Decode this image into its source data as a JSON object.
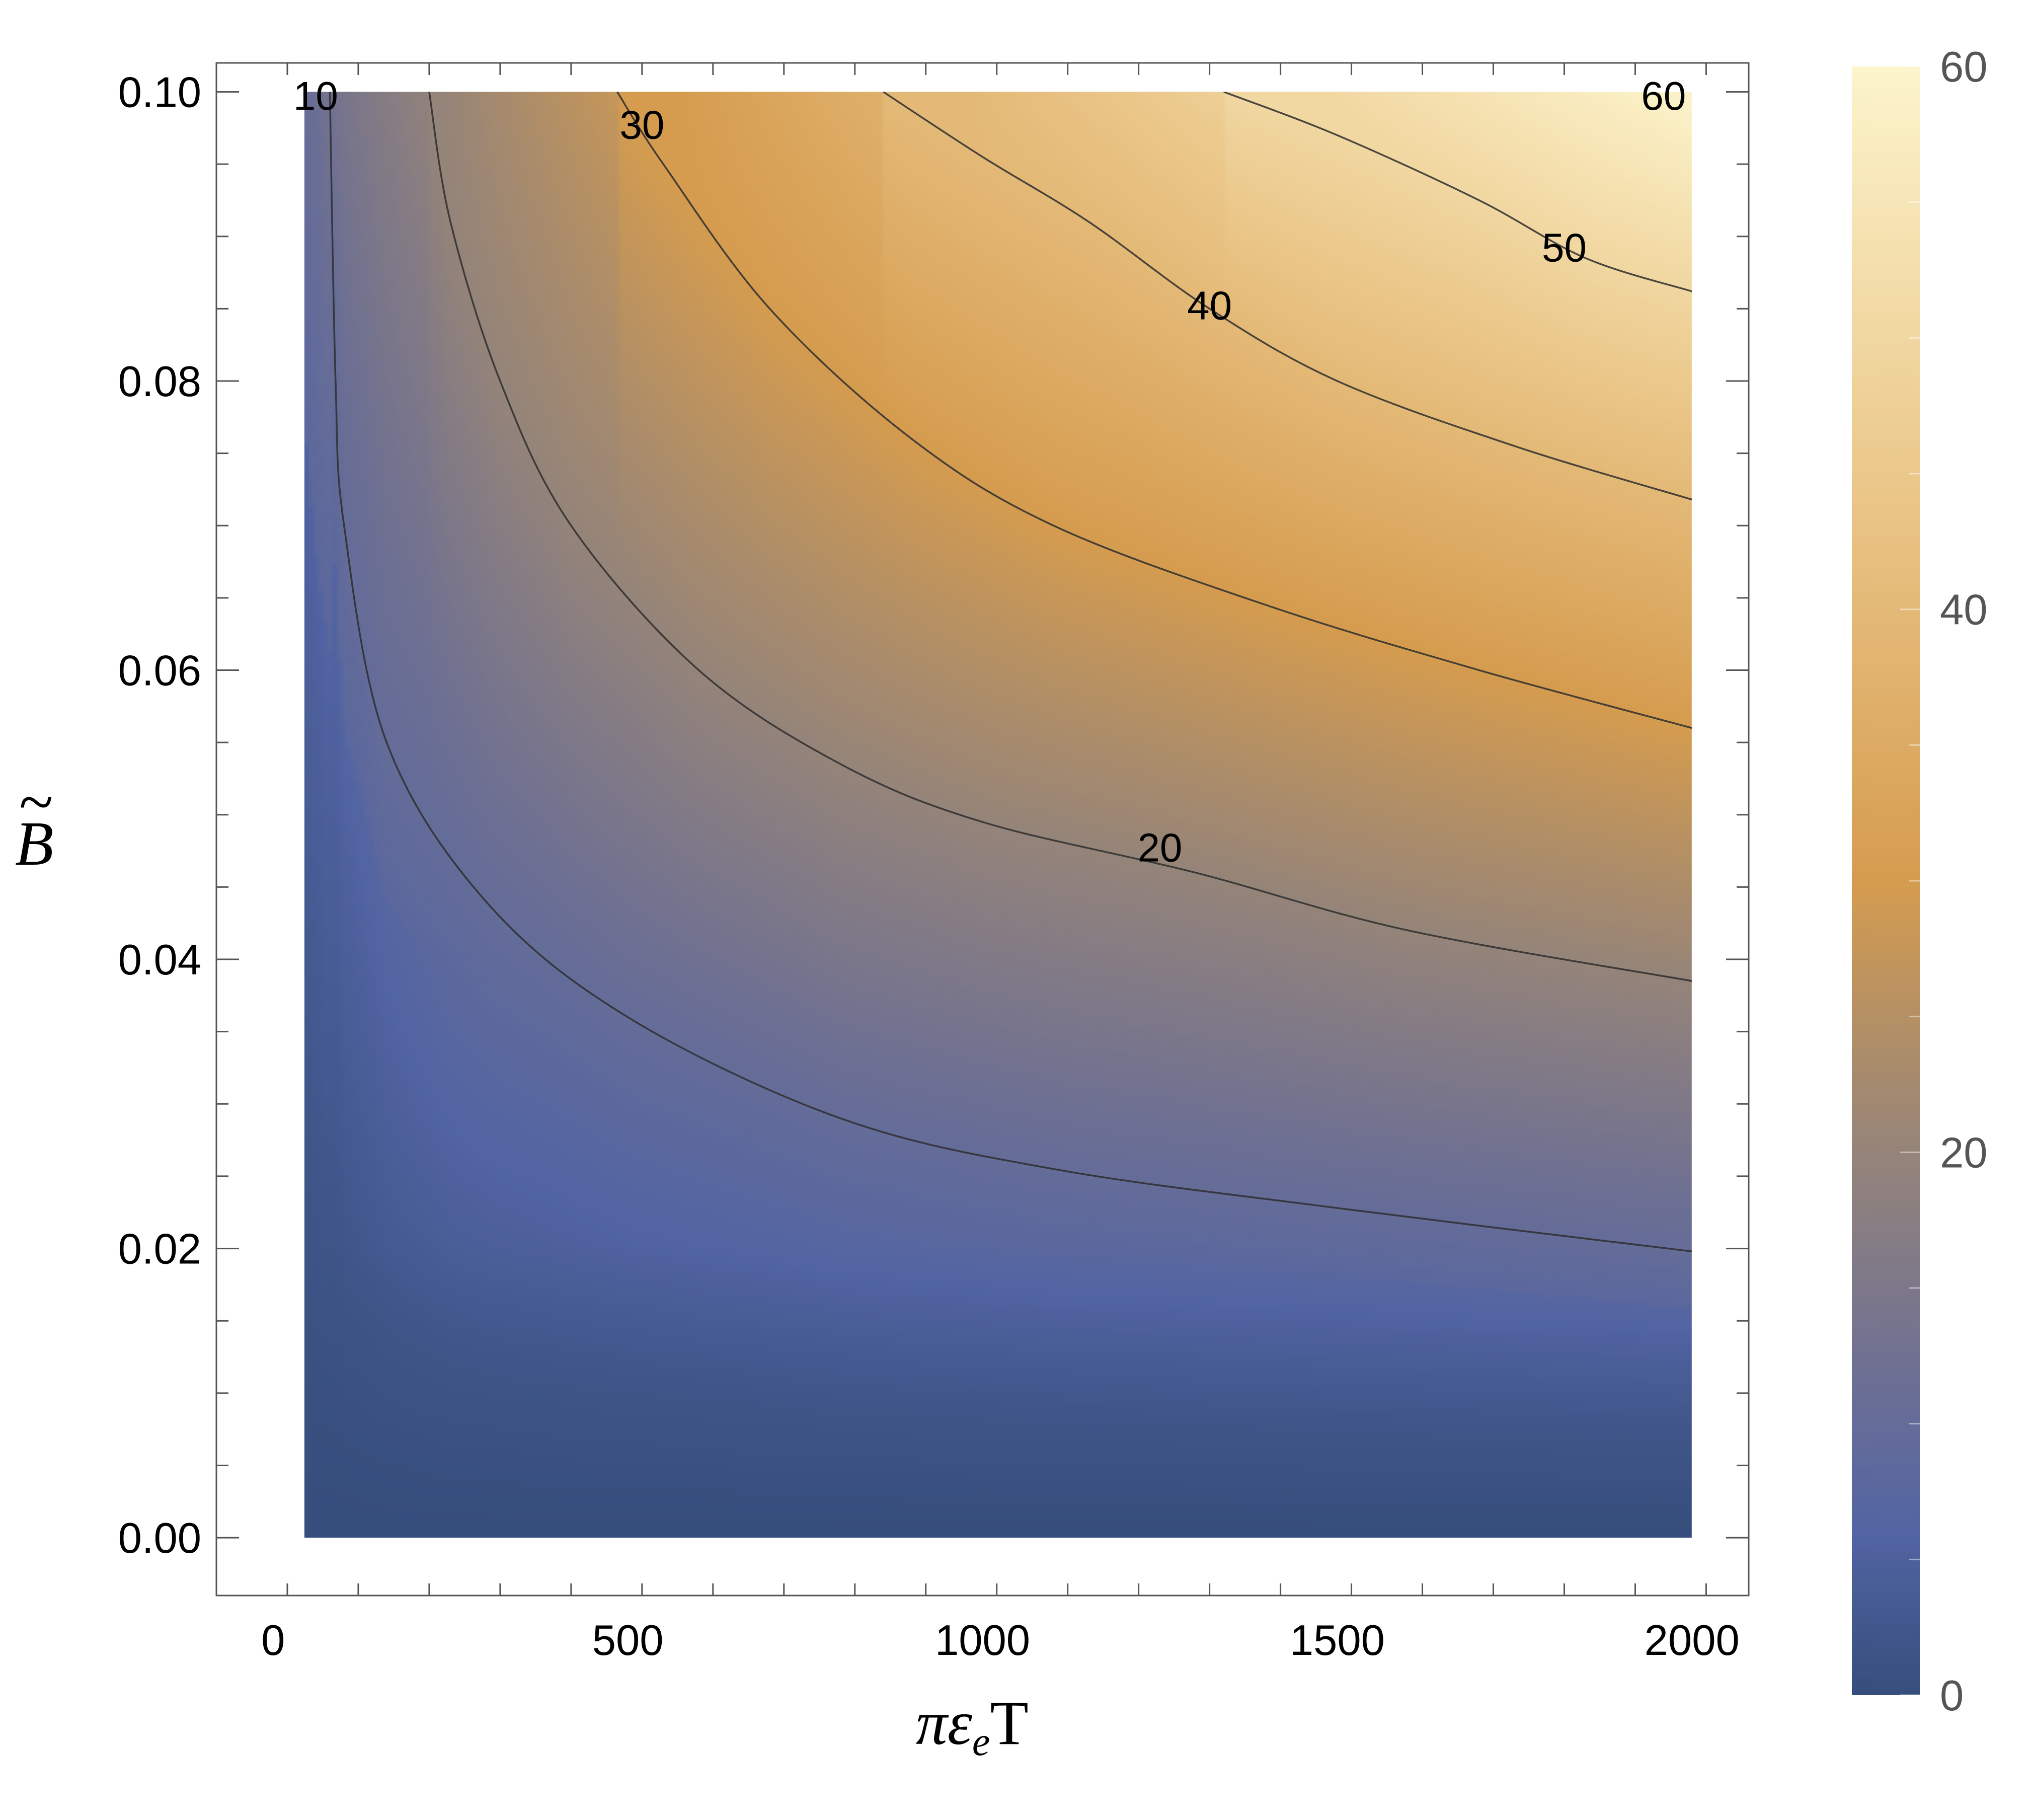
{
  "chart_data": {
    "type": "heatmap",
    "subtype": "contour",
    "title": "",
    "xlabel": {
      "main": "πε",
      "sub": "e",
      "suffix": "T"
    },
    "ylabel": {
      "main": "B",
      "accent": "~"
    },
    "xlim": [
      -80,
      2080
    ],
    "ylim": [
      -0.004,
      0.102
    ],
    "data_domain": {
      "x": [
        44,
        2000
      ],
      "y": [
        0,
        0.1
      ]
    },
    "x_ticks": [
      0,
      500,
      1000,
      1500,
      2000
    ],
    "x_tick_labels": [
      "0",
      "500",
      "1000",
      "1500",
      "2000"
    ],
    "x_minor_step": 100,
    "y_ticks": [
      0,
      0.02,
      0.04,
      0.06,
      0.08,
      0.1
    ],
    "y_tick_labels": [
      "0.00",
      "0.02",
      "0.04",
      "0.06",
      "0.08",
      "0.10"
    ],
    "y_minor_step": 0.005,
    "grid": false,
    "colorbar": {
      "range": [
        0,
        60
      ],
      "ticks": [
        0,
        20,
        40,
        60
      ],
      "tick_labels": [
        "0",
        "20",
        "40",
        "60"
      ],
      "minor_step": 5,
      "stops": [
        {
          "value": 0,
          "color": "#364e7c"
        },
        {
          "value": 6,
          "color": "#5264a3"
        },
        {
          "value": 12,
          "color": "#6e7093"
        },
        {
          "value": 20,
          "color": "#958479"
        },
        {
          "value": 30,
          "color": "#d59c4f"
        },
        {
          "value": 45,
          "color": "#ebc88b"
        },
        {
          "value": 60,
          "color": "#fcf4cc"
        }
      ]
    },
    "contours": [
      {
        "level": 10,
        "label": "10",
        "points": [
          [
            80,
            0.1
          ],
          [
            88,
            0.08
          ],
          [
            100,
            0.07
          ],
          [
            160,
            0.055
          ],
          [
            300,
            0.044
          ],
          [
            500,
            0.036
          ],
          [
            800,
            0.029
          ],
          [
            1100,
            0.0255
          ],
          [
            1500,
            0.0228
          ],
          [
            2000,
            0.0198
          ]
        ]
      },
      {
        "level": 20,
        "label": "20",
        "points": [
          [
            220,
            0.1
          ],
          [
            250,
            0.091
          ],
          [
            320,
            0.08
          ],
          [
            420,
            0.07
          ],
          [
            600,
            0.06
          ],
          [
            800,
            0.0535
          ],
          [
            1000,
            0.0495
          ],
          [
            1300,
            0.046
          ],
          [
            1600,
            0.042
          ],
          [
            2000,
            0.0385
          ]
        ]
      },
      {
        "level": 30,
        "label": "30",
        "points": [
          [
            485,
            0.1
          ],
          [
            550,
            0.095
          ],
          [
            700,
            0.085
          ],
          [
            900,
            0.076
          ],
          [
            1100,
            0.07
          ],
          [
            1400,
            0.0645
          ],
          [
            1700,
            0.06
          ],
          [
            2000,
            0.056
          ]
        ]
      },
      {
        "level": 40,
        "label": "40",
        "points": [
          [
            860,
            0.1
          ],
          [
            1000,
            0.0955
          ],
          [
            1150,
            0.091
          ],
          [
            1320,
            0.085
          ],
          [
            1500,
            0.08
          ],
          [
            1750,
            0.0755
          ],
          [
            2000,
            0.0718
          ]
        ]
      },
      {
        "level": 50,
        "label": "50",
        "points": [
          [
            1340,
            0.1
          ],
          [
            1500,
            0.097
          ],
          [
            1700,
            0.0925
          ],
          [
            1850,
            0.0885
          ],
          [
            2000,
            0.0862
          ]
        ]
      }
    ],
    "contour_labels": [
      {
        "text": "10",
        "x": 60,
        "y": 0.0995
      },
      {
        "text": "20",
        "x": 1250,
        "y": 0.0475
      },
      {
        "text": "30",
        "x": 520,
        "y": 0.0975
      },
      {
        "text": "40",
        "x": 1320,
        "y": 0.085
      },
      {
        "text": "50",
        "x": 1820,
        "y": 0.089
      },
      {
        "text": "60",
        "x": 1960,
        "y": 0.0995
      }
    ],
    "field_samples": [
      {
        "x": 60,
        "y": 0.1,
        "value": 10
      },
      {
        "x": 100,
        "y": 0.035,
        "value": 6
      },
      {
        "x": 300,
        "y": 0.02,
        "value": 6
      },
      {
        "x": 1200,
        "y": 0.015,
        "value": 7
      },
      {
        "x": 1000,
        "y": 0.002,
        "value": 1
      },
      {
        "x": 1200,
        "y": 0.075,
        "value": 33
      },
      {
        "x": 2000,
        "y": 0.1,
        "value": 60
      },
      {
        "x": 2000,
        "y": 0.0,
        "value": 0
      }
    ]
  }
}
